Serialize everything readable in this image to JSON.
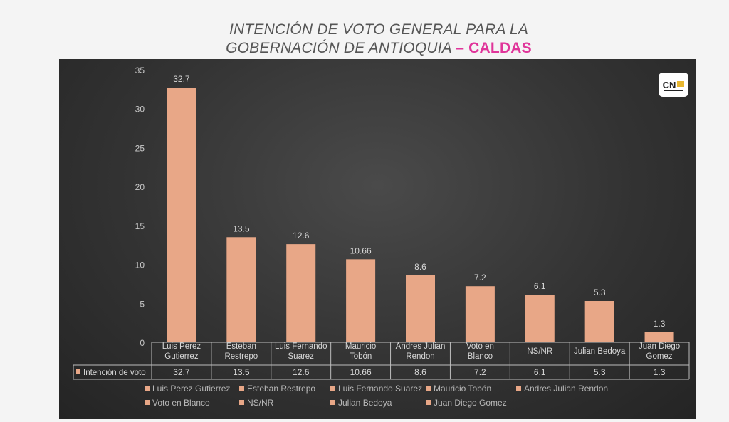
{
  "header": {
    "title_line1": "INTENCIÓN DE VOTO GENERAL PARA LA",
    "title_line2_main": "GOBERNACIÓN DE ANTIOQUIA",
    "title_line2_accent": "– CALDAS"
  },
  "logo": {
    "text": "CN",
    "icon": "cnc-logo"
  },
  "colors": {
    "bar": "#e8a787",
    "accent": "#e0359a",
    "panel": "#333333"
  },
  "chart_data": {
    "type": "bar",
    "title": "INTENCIÓN DE VOTO GENERAL PARA LA GOBERNACIÓN DE ANTIOQUIA – CALDAS",
    "xlabel": "",
    "ylabel": "",
    "ylim": [
      0,
      35
    ],
    "yticks": [
      0,
      5,
      10,
      15,
      20,
      25,
      30,
      35
    ],
    "categories": [
      [
        "Luis Perez",
        "Gutierrez"
      ],
      [
        "Esteban",
        "Restrepo"
      ],
      [
        "Luis Fernando",
        "Suarez"
      ],
      [
        "Mauricio",
        "Tobón"
      ],
      [
        "Andres Julian",
        "Rendon"
      ],
      [
        "Voto en",
        "Blanco"
      ],
      [
        "NS/NR"
      ],
      [
        "Julian Bedoya"
      ],
      [
        "Juan Diego",
        "Gomez"
      ]
    ],
    "series": [
      {
        "name": "Intención de voto",
        "values": [
          32.7,
          13.5,
          12.6,
          10.66,
          8.6,
          7.2,
          6.1,
          5.3,
          1.3
        ],
        "labels": [
          "32.7",
          "13.5",
          "12.6",
          "10.66",
          "8.6",
          "7.2",
          "6.1",
          "5.3",
          "1.3"
        ]
      }
    ],
    "data_table": true,
    "legend_position": "bottom",
    "legend": [
      "Luis Perez Gutierrez",
      "Esteban Restrepo",
      "Luis Fernando Suarez",
      "Mauricio Tobón",
      "Andres Julian Rendon",
      "Voto en Blanco",
      "NS/NR",
      "Julian Bedoya",
      "Juan Diego Gomez"
    ]
  }
}
